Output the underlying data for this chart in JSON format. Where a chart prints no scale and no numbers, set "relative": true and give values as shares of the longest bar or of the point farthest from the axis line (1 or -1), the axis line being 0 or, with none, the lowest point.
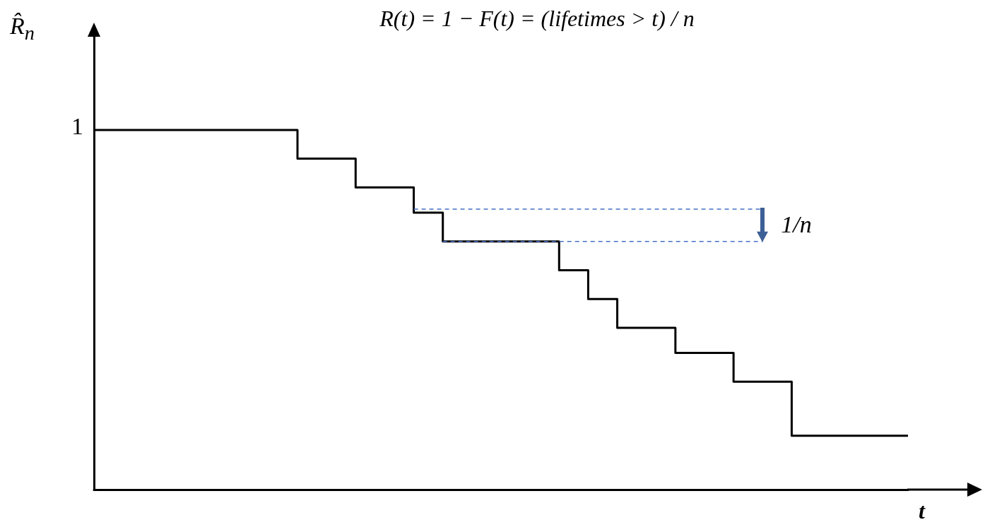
{
  "chart_data": {
    "type": "step",
    "title": "R(t) = 1 − F(t) = (lifetimes > t) / n",
    "xlabel": "t",
    "ylabel": "R̂$_{n}$",
    "relative": true,
    "categories": [
      null,
      null,
      null,
      null,
      null,
      null,
      null,
      null,
      null,
      null,
      null,
      null,
      null,
      null,
      null,
      null,
      null,
      null,
      null,
      null,
      null,
      null,
      null,
      null,
      null,
      null,
      null,
      null,
      null
    ],
    "series": [
      {
        "color": "#000000",
        "values": [
          1,
          1,
          1,
          1,
          1,
          1,
          1,
          0.92,
          0.92,
          0.84,
          0.84,
          0.77,
          0.69,
          0.69,
          0.69,
          0.69,
          0.61,
          0.53,
          0.45,
          0.45,
          0.38,
          0.38,
          0.3,
          0.3,
          0.15,
          0.15,
          0.15,
          0.15,
          0.15
        ]
      }
    ],
    "ref_lines": [
      {
        "axis": "y",
        "value": 0.78,
        "color": "#4472c4",
        "line_style": "dashed"
      },
      {
        "axis": "y",
        "value": 0.69,
        "color": "#4472c4",
        "line_style": "dashed"
      }
    ],
    "annotations": [
      "1",
      "1/n"
    ],
    "grid": false,
    "marker": "none",
    "line_style": "solid"
  }
}
